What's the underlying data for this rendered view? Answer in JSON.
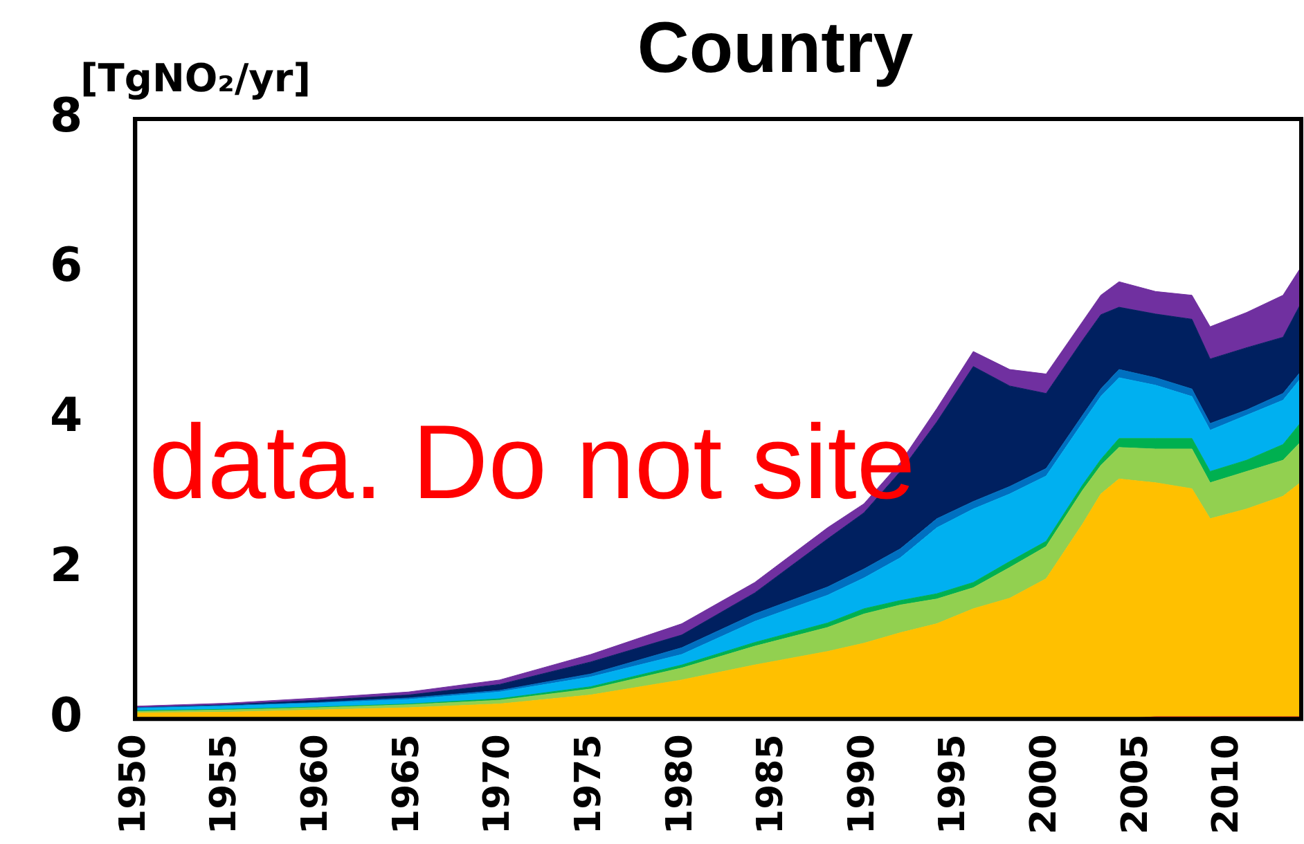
{
  "chart_data": {
    "type": "area",
    "title": "Country",
    "ylabel": "[TgNO₂/yr]",
    "stacked": true,
    "grid": false,
    "marker": "none",
    "x": [
      1950,
      1955,
      1960,
      1965,
      1970,
      1975,
      1980,
      1984,
      1988,
      1990,
      1992,
      1994,
      1996,
      1998,
      2000,
      2002,
      2003,
      2004,
      2006,
      2008,
      2009,
      2011,
      2013,
      2014
    ],
    "xlim": [
      1950,
      2014
    ],
    "xticks": [
      1950,
      1955,
      1960,
      1965,
      1970,
      1975,
      1980,
      1985,
      1990,
      1995,
      2000,
      2005,
      2010
    ],
    "ylim": [
      0,
      8
    ],
    "yticks": [
      0,
      2,
      4,
      6,
      8
    ],
    "series": [
      {
        "color": "#e02020",
        "values": [
          0,
          0,
          0,
          0,
          0,
          0,
          0,
          0,
          0,
          0,
          0,
          0,
          0,
          0,
          0,
          0,
          0,
          0,
          0.03,
          0.03,
          0.03,
          0.03,
          0.03,
          0.03
        ]
      },
      {
        "color": "#ffc000",
        "values": [
          0.08,
          0.09,
          0.12,
          0.15,
          0.2,
          0.32,
          0.52,
          0.72,
          0.9,
          1.01,
          1.15,
          1.27,
          1.47,
          1.61,
          1.87,
          2.6,
          3.0,
          3.2,
          3.12,
          3.04,
          2.64,
          2.77,
          2.94,
          3.13
        ]
      },
      {
        "color": "#92d050",
        "values": [
          0.02,
          0.03,
          0.03,
          0.04,
          0.05,
          0.08,
          0.16,
          0.25,
          0.32,
          0.39,
          0.37,
          0.33,
          0.28,
          0.41,
          0.43,
          0.45,
          0.38,
          0.42,
          0.45,
          0.53,
          0.48,
          0.5,
          0.48,
          0.54
        ]
      },
      {
        "color": "#00b050",
        "values": [
          0.01,
          0.01,
          0.01,
          0.01,
          0.02,
          0.03,
          0.04,
          0.05,
          0.06,
          0.07,
          0.06,
          0.07,
          0.07,
          0.08,
          0.07,
          0.07,
          0.08,
          0.12,
          0.14,
          0.14,
          0.15,
          0.15,
          0.21,
          0.26
        ]
      },
      {
        "color": "#00b0f0",
        "values": [
          0.03,
          0.04,
          0.05,
          0.06,
          0.09,
          0.13,
          0.14,
          0.28,
          0.37,
          0.41,
          0.57,
          0.88,
          0.98,
          0.9,
          0.87,
          0.83,
          0.84,
          0.81,
          0.71,
          0.56,
          0.55,
          0.6,
          0.59,
          0.59
        ]
      },
      {
        "color": "#0070c0",
        "values": [
          0.01,
          0.01,
          0.01,
          0.02,
          0.02,
          0.04,
          0.09,
          0.1,
          0.11,
          0.12,
          0.12,
          0.12,
          0.1,
          0.1,
          0.1,
          0.1,
          0.1,
          0.11,
          0.1,
          0.1,
          0.09,
          0.07,
          0.09,
          0.09
        ]
      },
      {
        "color": "#002060",
        "values": [
          0.0,
          0.01,
          0.03,
          0.04,
          0.08,
          0.16,
          0.17,
          0.28,
          0.64,
          0.75,
          1.03,
          1.29,
          1.8,
          1.34,
          1.0,
          1.0,
          0.99,
          0.83,
          0.85,
          0.93,
          0.86,
          0.83,
          0.75,
          0.91
        ]
      },
      {
        "color": "#7030a0",
        "values": [
          0.02,
          0.02,
          0.03,
          0.04,
          0.06,
          0.1,
          0.15,
          0.14,
          0.15,
          0.12,
          0.12,
          0.18,
          0.2,
          0.22,
          0.26,
          0.25,
          0.26,
          0.34,
          0.3,
          0.32,
          0.43,
          0.47,
          0.56,
          0.48
        ]
      }
    ],
    "annotations": [
      "data. Do not site"
    ]
  }
}
